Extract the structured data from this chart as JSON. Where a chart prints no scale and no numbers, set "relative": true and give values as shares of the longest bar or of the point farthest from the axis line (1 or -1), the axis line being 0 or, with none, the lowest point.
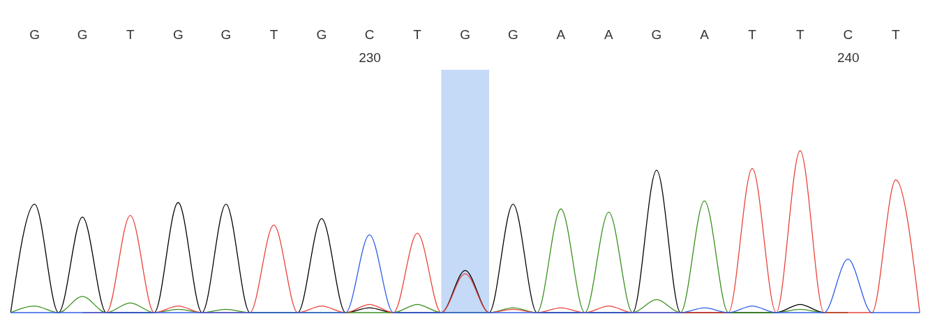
{
  "chart_data": {
    "type": "line",
    "relative": true,
    "grid": false,
    "line_style": "solid",
    "marker": "none",
    "x": [
      222.5,
      223,
      223.5,
      224,
      224.5,
      225,
      225.5,
      226,
      226.5,
      227,
      227.5,
      228,
      228.5,
      229,
      229.5,
      230,
      230.5,
      231,
      231.5,
      232,
      232.5,
      233,
      233.5,
      234,
      234.5,
      235,
      235.5,
      236,
      236.5,
      237,
      237.5,
      238,
      238.5,
      239,
      239.5,
      240,
      240.5,
      241,
      241.5
    ],
    "xlim": [
      222.35,
      241.6
    ],
    "xticks": [
      230,
      240
    ],
    "annotations": [
      "G",
      "G",
      "T",
      "G",
      "G",
      "T",
      "G",
      "C",
      "T",
      "G",
      "G",
      "A",
      "A",
      "G",
      "A",
      "T",
      "T",
      "C",
      "T"
    ],
    "bands": [
      {
        "axis": "x",
        "from": 231.5,
        "to": 232.5,
        "color": "#c5daf7"
      }
    ],
    "series": [
      {
        "color": "#000000",
        "values": [
          0,
          0.67,
          0,
          0.59,
          0,
          0,
          0,
          0.68,
          0,
          0.67,
          0,
          0,
          0,
          0.58,
          0,
          0.03,
          0,
          0,
          0,
          0.26,
          0,
          0.67,
          0,
          0,
          0,
          0,
          0,
          0.88,
          0,
          0,
          0,
          0,
          0,
          0.05,
          0,
          0,
          null,
          null,
          null
        ]
      },
      {
        "color": "#3a8f1e",
        "values": [
          0,
          0.04,
          0,
          0.1,
          0,
          0.06,
          0,
          0.02,
          0,
          0.02,
          0,
          0,
          0,
          0,
          0,
          0,
          0,
          0.05,
          0,
          0,
          0,
          0.03,
          0,
          0.64,
          0,
          0.62,
          0,
          0.08,
          0,
          0.69,
          0,
          0,
          0,
          0.02,
          0,
          0,
          null,
          null,
          null
        ]
      },
      {
        "color": "#e8423a",
        "values": [
          null,
          null,
          null,
          0,
          0,
          0.6,
          0,
          0.04,
          0,
          0,
          0,
          0.54,
          0,
          0.04,
          0,
          0.05,
          0,
          0.49,
          0,
          0.24,
          0,
          0.02,
          0,
          0.03,
          0,
          0.04,
          0,
          0,
          0,
          null,
          0,
          0.89,
          0,
          1,
          0,
          null,
          0,
          0.82,
          0
        ]
      },
      {
        "color": "#2f5fe8",
        "values": [
          0,
          0,
          0,
          0,
          null,
          null,
          0,
          0,
          0,
          null,
          0,
          null,
          0,
          0,
          0,
          0.48,
          0,
          null,
          0,
          0,
          0,
          0,
          0,
          null,
          null,
          null,
          null,
          null,
          0,
          0.03,
          0,
          0.04,
          0,
          0,
          0,
          0.33,
          0,
          0,
          0
        ]
      }
    ]
  }
}
